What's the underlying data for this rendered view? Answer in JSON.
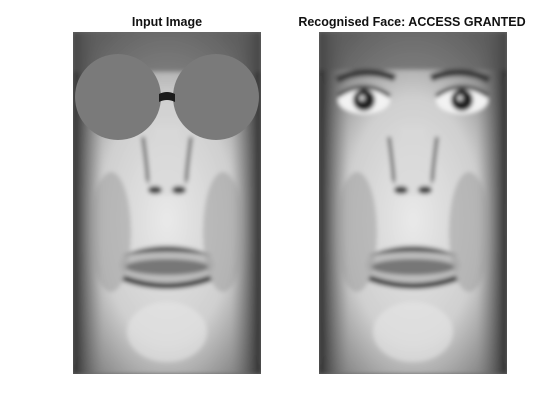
{
  "figure": {
    "panels": [
      {
        "title": "Input Image",
        "image": "masked-face-grayscale"
      },
      {
        "title": "Recognised Face: ACCESS GRANTED",
        "image": "recognised-face-grayscale"
      }
    ]
  }
}
